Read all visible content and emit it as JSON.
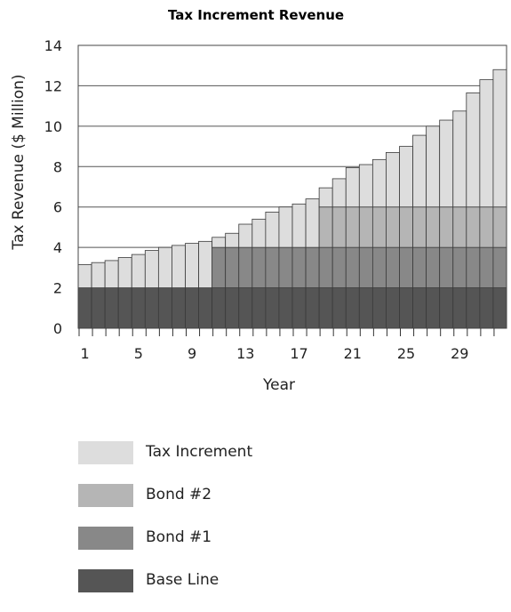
{
  "chart_data": {
    "type": "bar",
    "stacked": true,
    "title": "Tax Increment Revenue",
    "xlabel": "Year",
    "ylabel": "Tax Revenue ($ Million)",
    "ylim": [
      0,
      14
    ],
    "yticks": [
      0,
      2,
      4,
      6,
      8,
      10,
      12,
      14
    ],
    "xticklabels": [
      "1",
      "5",
      "9",
      "13",
      "17",
      "21",
      "25",
      "29"
    ],
    "grid": "horizontal",
    "legend_position": "bottom",
    "categories": [
      1,
      2,
      3,
      4,
      5,
      6,
      7,
      8,
      9,
      10,
      11,
      12,
      13,
      14,
      15,
      16,
      17,
      18,
      19,
      20,
      21,
      22,
      23,
      24,
      25,
      26,
      27,
      28,
      29,
      30,
      31,
      32
    ],
    "series": [
      {
        "name": "Base Line",
        "color": "#555555",
        "values": [
          2,
          2,
          2,
          2,
          2,
          2,
          2,
          2,
          2,
          2,
          2,
          2,
          2,
          2,
          2,
          2,
          2,
          2,
          2,
          2,
          2,
          2,
          2,
          2,
          2,
          2,
          2,
          2,
          2,
          2,
          2,
          2
        ]
      },
      {
        "name": "Bond #1",
        "color": "#888888",
        "values": [
          0,
          0,
          0,
          0,
          0,
          0,
          0,
          0,
          0,
          0,
          2,
          2,
          2,
          2,
          2,
          2,
          2,
          2,
          2,
          2,
          2,
          2,
          2,
          2,
          2,
          2,
          2,
          2,
          2,
          2,
          2,
          2
        ]
      },
      {
        "name": "Bond #2",
        "color": "#b5b5b5",
        "values": [
          0,
          0,
          0,
          0,
          0,
          0,
          0,
          0,
          0,
          0,
          0,
          0,
          0,
          0,
          0,
          0,
          0,
          0,
          2,
          2,
          2,
          2,
          2,
          2,
          2,
          2,
          2,
          2,
          2,
          2,
          2,
          2
        ]
      },
      {
        "name": "Tax Increment",
        "color": "#dddddd",
        "values": [
          1.15,
          1.25,
          1.35,
          1.5,
          1.65,
          1.85,
          2.0,
          2.1,
          2.2,
          2.3,
          0.5,
          0.7,
          1.15,
          1.4,
          1.75,
          2.0,
          2.15,
          2.4,
          0.95,
          1.4,
          1.95,
          2.1,
          2.35,
          2.7,
          3.0,
          3.55,
          4.0,
          4.3,
          4.75,
          5.65,
          6.3,
          6.8
        ]
      }
    ]
  },
  "legend": {
    "items": [
      {
        "label": "Tax Increment",
        "color": "#dddddd"
      },
      {
        "label": "Bond #2",
        "color": "#b5b5b5"
      },
      {
        "label": "Bond #1",
        "color": "#888888"
      },
      {
        "label": "Base Line",
        "color": "#555555"
      }
    ]
  }
}
